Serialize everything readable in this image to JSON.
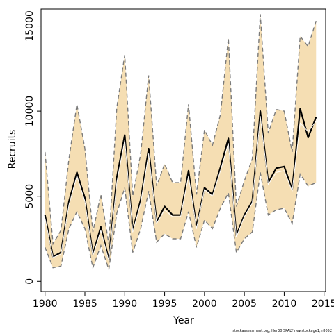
{
  "chart_data": {
    "type": "line",
    "xlabel": "Year",
    "ylabel": "Recruits",
    "xlim": [
      1979.5,
      2015.2
    ],
    "ylim": [
      -600,
      16000
    ],
    "x_ticks": [
      1980,
      1985,
      1990,
      1995,
      2000,
      2005,
      2010,
      2015
    ],
    "y_ticks": [
      0,
      5000,
      10000,
      15000
    ],
    "x_tick_labels": [
      "1980",
      "1985",
      "1990",
      "1995",
      "2000",
      "2005",
      "2010",
      "2015"
    ],
    "y_tick_labels": [
      "0",
      "5000",
      "10000",
      "15000"
    ],
    "grid": false,
    "colors": {
      "band": "#f5deb3",
      "bound_line": "#7a7a7a",
      "estimate_line": "#000000",
      "median_line": "#ffffff"
    },
    "x": [
      1980,
      1981,
      1982,
      1983,
      1984,
      1985,
      1986,
      1987,
      1988,
      1989,
      1990,
      1991,
      1992,
      1993,
      1994,
      1995,
      1996,
      1997,
      1998,
      1999,
      2000,
      2001,
      2002,
      2003,
      2004,
      2005,
      2006,
      2007,
      2008,
      2009,
      2010,
      2011,
      2012,
      2013,
      2014
    ],
    "series": [
      {
        "role": "estimate",
        "values": [
          3900,
          1450,
          1700,
          4700,
          6400,
          4900,
          1600,
          3200,
          1300,
          6100,
          8600,
          3000,
          4800,
          7800,
          3500,
          4400,
          3900,
          3900,
          6500,
          3200,
          5500,
          5100,
          6700,
          8400,
          2700,
          3900,
          4700,
          10000,
          5800,
          6650,
          6750,
          5400,
          10150,
          8450,
          9650
        ]
      },
      {
        "role": "median",
        "values": [
          3700,
          1400,
          1600,
          4500,
          6200,
          4700,
          1500,
          3000,
          1200,
          5800,
          8300,
          2900,
          4600,
          7500,
          3400,
          4200,
          3800,
          3800,
          6200,
          3100,
          5400,
          5000,
          6500,
          8100,
          2600,
          3800,
          4600,
          9700,
          5700,
          6400,
          6500,
          5300,
          9300,
          8800,
          9400
        ]
      },
      {
        "role": "upper",
        "values": [
          7600,
          2200,
          3000,
          7200,
          10400,
          7800,
          2900,
          5100,
          2200,
          10200,
          13300,
          5000,
          7500,
          12100,
          5600,
          6900,
          5800,
          5800,
          10400,
          5100,
          8900,
          8000,
          9800,
          14300,
          4400,
          5900,
          7200,
          15700,
          8700,
          10100,
          10000,
          7600,
          14400,
          13800,
          15300
        ]
      },
      {
        "role": "lower",
        "values": [
          2000,
          800,
          900,
          3100,
          4100,
          3100,
          800,
          2100,
          700,
          4000,
          5500,
          1700,
          3100,
          5300,
          2300,
          2800,
          2500,
          2500,
          4100,
          2000,
          3600,
          3100,
          4300,
          5200,
          1700,
          2500,
          2900,
          6400,
          3900,
          4200,
          4300,
          3400,
          6300,
          5600,
          5800
        ]
      }
    ],
    "footnote": "stockassessment.org, Her30 SPALY newstockage1, r8052"
  }
}
